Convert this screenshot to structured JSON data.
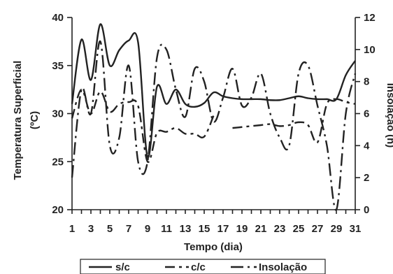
{
  "chart_data": {
    "type": "line",
    "x": [
      1,
      2,
      3,
      4,
      5,
      6,
      7,
      8,
      9,
      10,
      11,
      12,
      13,
      14,
      15,
      16,
      17,
      18,
      19,
      20,
      21,
      22,
      23,
      24,
      25,
      26,
      27,
      28,
      29,
      30,
      31
    ],
    "x_ticks": [
      "1",
      "3",
      "5",
      "7",
      "9",
      "11",
      "13",
      "15",
      "17",
      "19",
      "21",
      "23",
      "25",
      "27",
      "29",
      "31"
    ],
    "xlabel": "Tempo (dia)",
    "ylabel_left": [
      "Temperatura Superficial",
      "(ºC)"
    ],
    "ylabel_right": "Insolação (h)",
    "ylim_left": [
      20,
      40
    ],
    "yticks_left": [
      "20",
      "25",
      "30",
      "35",
      "40"
    ],
    "ylim_right": [
      0,
      12
    ],
    "yticks_right": [
      "0",
      "2",
      "4",
      "6",
      "8",
      "10",
      "12"
    ],
    "grid": false,
    "legend_position": "bottom",
    "series": [
      {
        "name": "s/c",
        "axis": "left",
        "style": "solid",
        "values": [
          31,
          37.7,
          33.5,
          39.3,
          35.0,
          36.6,
          37.6,
          37.4,
          25.5,
          32.8,
          31.0,
          32.5,
          31.0,
          30.7,
          31.1,
          32.2,
          31.8,
          31.6,
          31.5,
          31.5,
          31.5,
          31.4,
          31.4,
          31.6,
          31.8,
          31.6,
          31.5,
          31.5,
          31.5,
          34.0,
          35.5
        ]
      },
      {
        "name": "c/c",
        "axis": "left",
        "style": "dashed",
        "values": [
          29.5,
          32.5,
          30.0,
          32.3,
          30.2,
          31.0,
          31.2,
          30.8,
          25.0,
          28.0,
          28.1,
          28.5,
          27.9,
          27.9,
          27.6,
          29.8,
          null,
          28.5,
          28.6,
          28.7,
          28.8,
          28.9,
          28.7,
          28.8,
          29.1,
          28.8,
          27.0,
          31.0,
          31.5,
          31.2,
          31.0
        ]
      },
      {
        "name": "Insolação",
        "axis": "right",
        "style": "dashdot",
        "values": [
          2.0,
          7.5,
          6.0,
          10.5,
          4.0,
          4.5,
          9.0,
          3.0,
          3.0,
          9.5,
          10.0,
          7.5,
          5.8,
          8.8,
          8.0,
          5.5,
          7.0,
          8.8,
          6.5,
          7.0,
          8.5,
          6.0,
          4.5,
          4.0,
          8.5,
          9.0,
          6.5,
          4.0,
          0.0,
          6.0,
          8.5
        ]
      }
    ]
  }
}
